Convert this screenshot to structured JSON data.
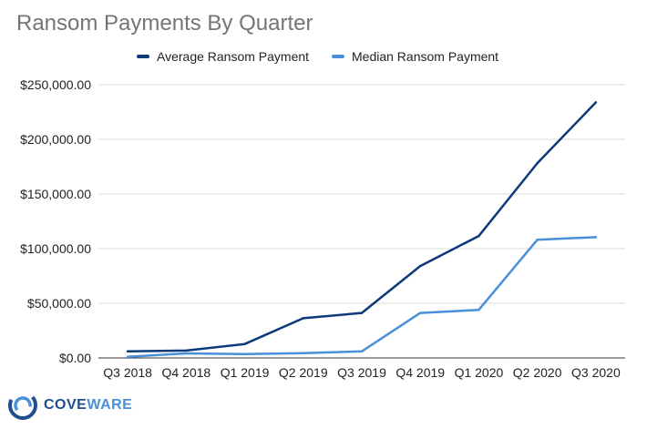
{
  "chart_data": {
    "type": "line",
    "title": "Ransom Payments By Quarter",
    "categories": [
      "Q3 2018",
      "Q4 2018",
      "Q1 2019",
      "Q2 2019",
      "Q3 2019",
      "Q4 2019",
      "Q1 2020",
      "Q2 2020",
      "Q3 2020"
    ],
    "series": [
      {
        "name": "Average Ransom Payment",
        "color": "#0b3a78",
        "values": [
          5973,
          6733,
          12762,
          36295,
          41198,
          84116,
          111605,
          178254,
          233817
        ]
      },
      {
        "name": "Median Ransom Payment",
        "color": "#4a90d9",
        "values": [
          1000,
          4200,
          3500,
          4300,
          6000,
          41179,
          44021,
          108150,
          110532
        ]
      }
    ],
    "y_ticks": [
      "$0.00",
      "$50,000.00",
      "$100,000.00",
      "$150,000.00",
      "$200,000.00",
      "$250,000.00"
    ],
    "ylim": [
      0,
      250000
    ],
    "grid": true,
    "legend_position": "top-center"
  },
  "logo": {
    "text_a": "COVE",
    "text_b": "WARE"
  }
}
